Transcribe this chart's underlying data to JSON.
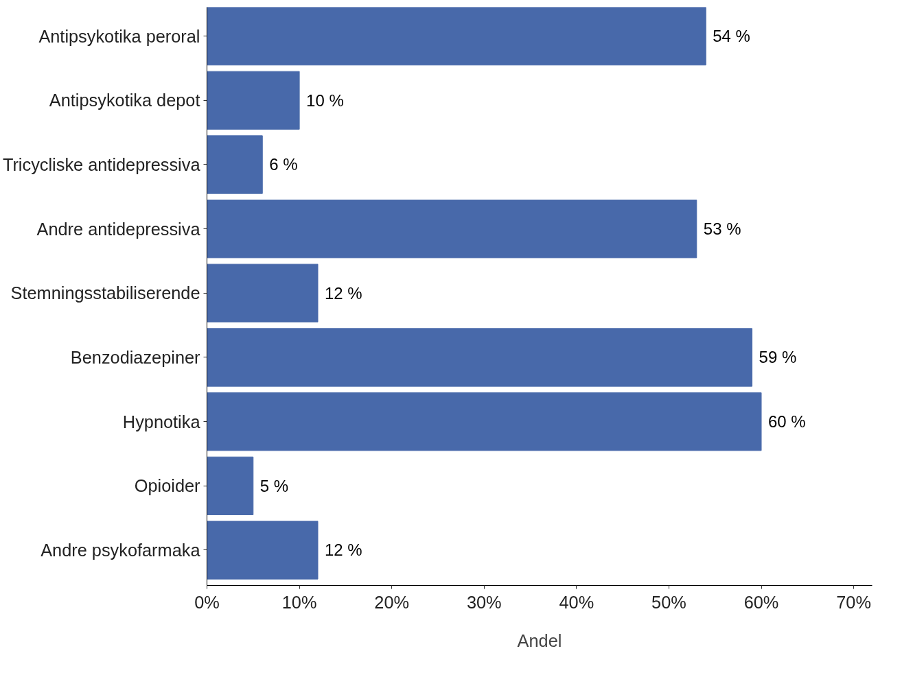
{
  "chart_data": {
    "type": "bar",
    "orientation": "horizontal",
    "xlabel": "Andel",
    "categories": [
      "Antipsykotika peroral",
      "Antipsykotika depot",
      "Tricycliske antidepressiva",
      "Andre antidepressiva",
      "Stemningsstabiliserende",
      "Benzodiazepiner",
      "Hypnotika",
      "Opioider",
      "Andre psykofarmaka"
    ],
    "values": [
      54,
      10,
      6,
      53,
      12,
      59,
      60,
      5,
      12
    ],
    "value_labels": [
      "54 %",
      "10 %",
      "6 %",
      "53 %",
      "12 %",
      "59 %",
      "60 %",
      "5 %",
      "12 %"
    ],
    "color": "#4869aa",
    "xlim": [
      0,
      72
    ],
    "xticks": [
      {
        "value": 0,
        "label": "0%"
      },
      {
        "value": 10,
        "label": "10%"
      },
      {
        "value": 20,
        "label": "20%"
      },
      {
        "value": 30,
        "label": "30%"
      },
      {
        "value": 40,
        "label": "40%"
      },
      {
        "value": 50,
        "label": "50%"
      },
      {
        "value": 60,
        "label": "60%"
      },
      {
        "value": 70,
        "label": "70%"
      }
    ],
    "grid": false
  }
}
